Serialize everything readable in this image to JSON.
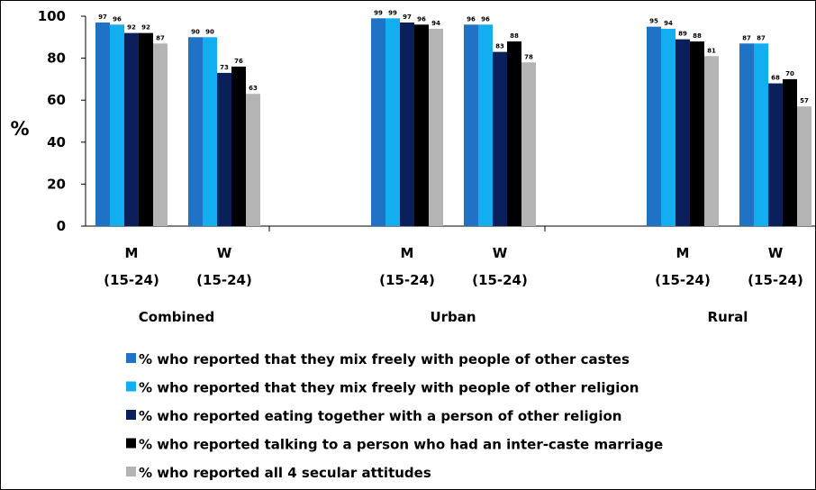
{
  "chart_data": {
    "type": "bar",
    "ylabel": "%",
    "ylim": [
      0,
      100
    ],
    "yticks": [
      "0",
      "20",
      "40",
      "60",
      "80",
      "100"
    ],
    "grid": false,
    "legend_position": "bottom",
    "groups": [
      {
        "label": "Combined",
        "categories": [
          {
            "label": "M",
            "sublabel": "(15-24)",
            "values": [
              97,
              96,
              92,
              92,
              87
            ]
          },
          {
            "label": "W",
            "sublabel": "(15-24)",
            "values": [
              90,
              90,
              73,
              76,
              63
            ]
          }
        ]
      },
      {
        "label": "Urban",
        "categories": [
          {
            "label": "M",
            "sublabel": "(15-24)",
            "values": [
              99,
              99,
              97,
              96,
              94
            ]
          },
          {
            "label": "W",
            "sublabel": "(15-24)",
            "values": [
              96,
              96,
              83,
              88,
              78
            ]
          }
        ]
      },
      {
        "label": "Rural",
        "categories": [
          {
            "label": "M",
            "sublabel": "(15-24)",
            "values": [
              95,
              94,
              89,
              88,
              81
            ]
          },
          {
            "label": "W",
            "sublabel": "(15-24)",
            "values": [
              87,
              87,
              68,
              70,
              57
            ]
          }
        ]
      }
    ],
    "series": [
      {
        "name": "% who reported that they mix freely with people of other castes",
        "color": "#1f72c4"
      },
      {
        "name": "% who reported that they mix freely with people of other religion",
        "color": "#12aef0"
      },
      {
        "name": "% who reported eating together with a person of other religion",
        "color": "#0b1f5a"
      },
      {
        "name": "% who reported talking to a person who had an inter-caste marriage",
        "color": "#000000"
      },
      {
        "name": "% who reported all 4 secular attitudes",
        "color": "#b4b4b4"
      }
    ]
  }
}
